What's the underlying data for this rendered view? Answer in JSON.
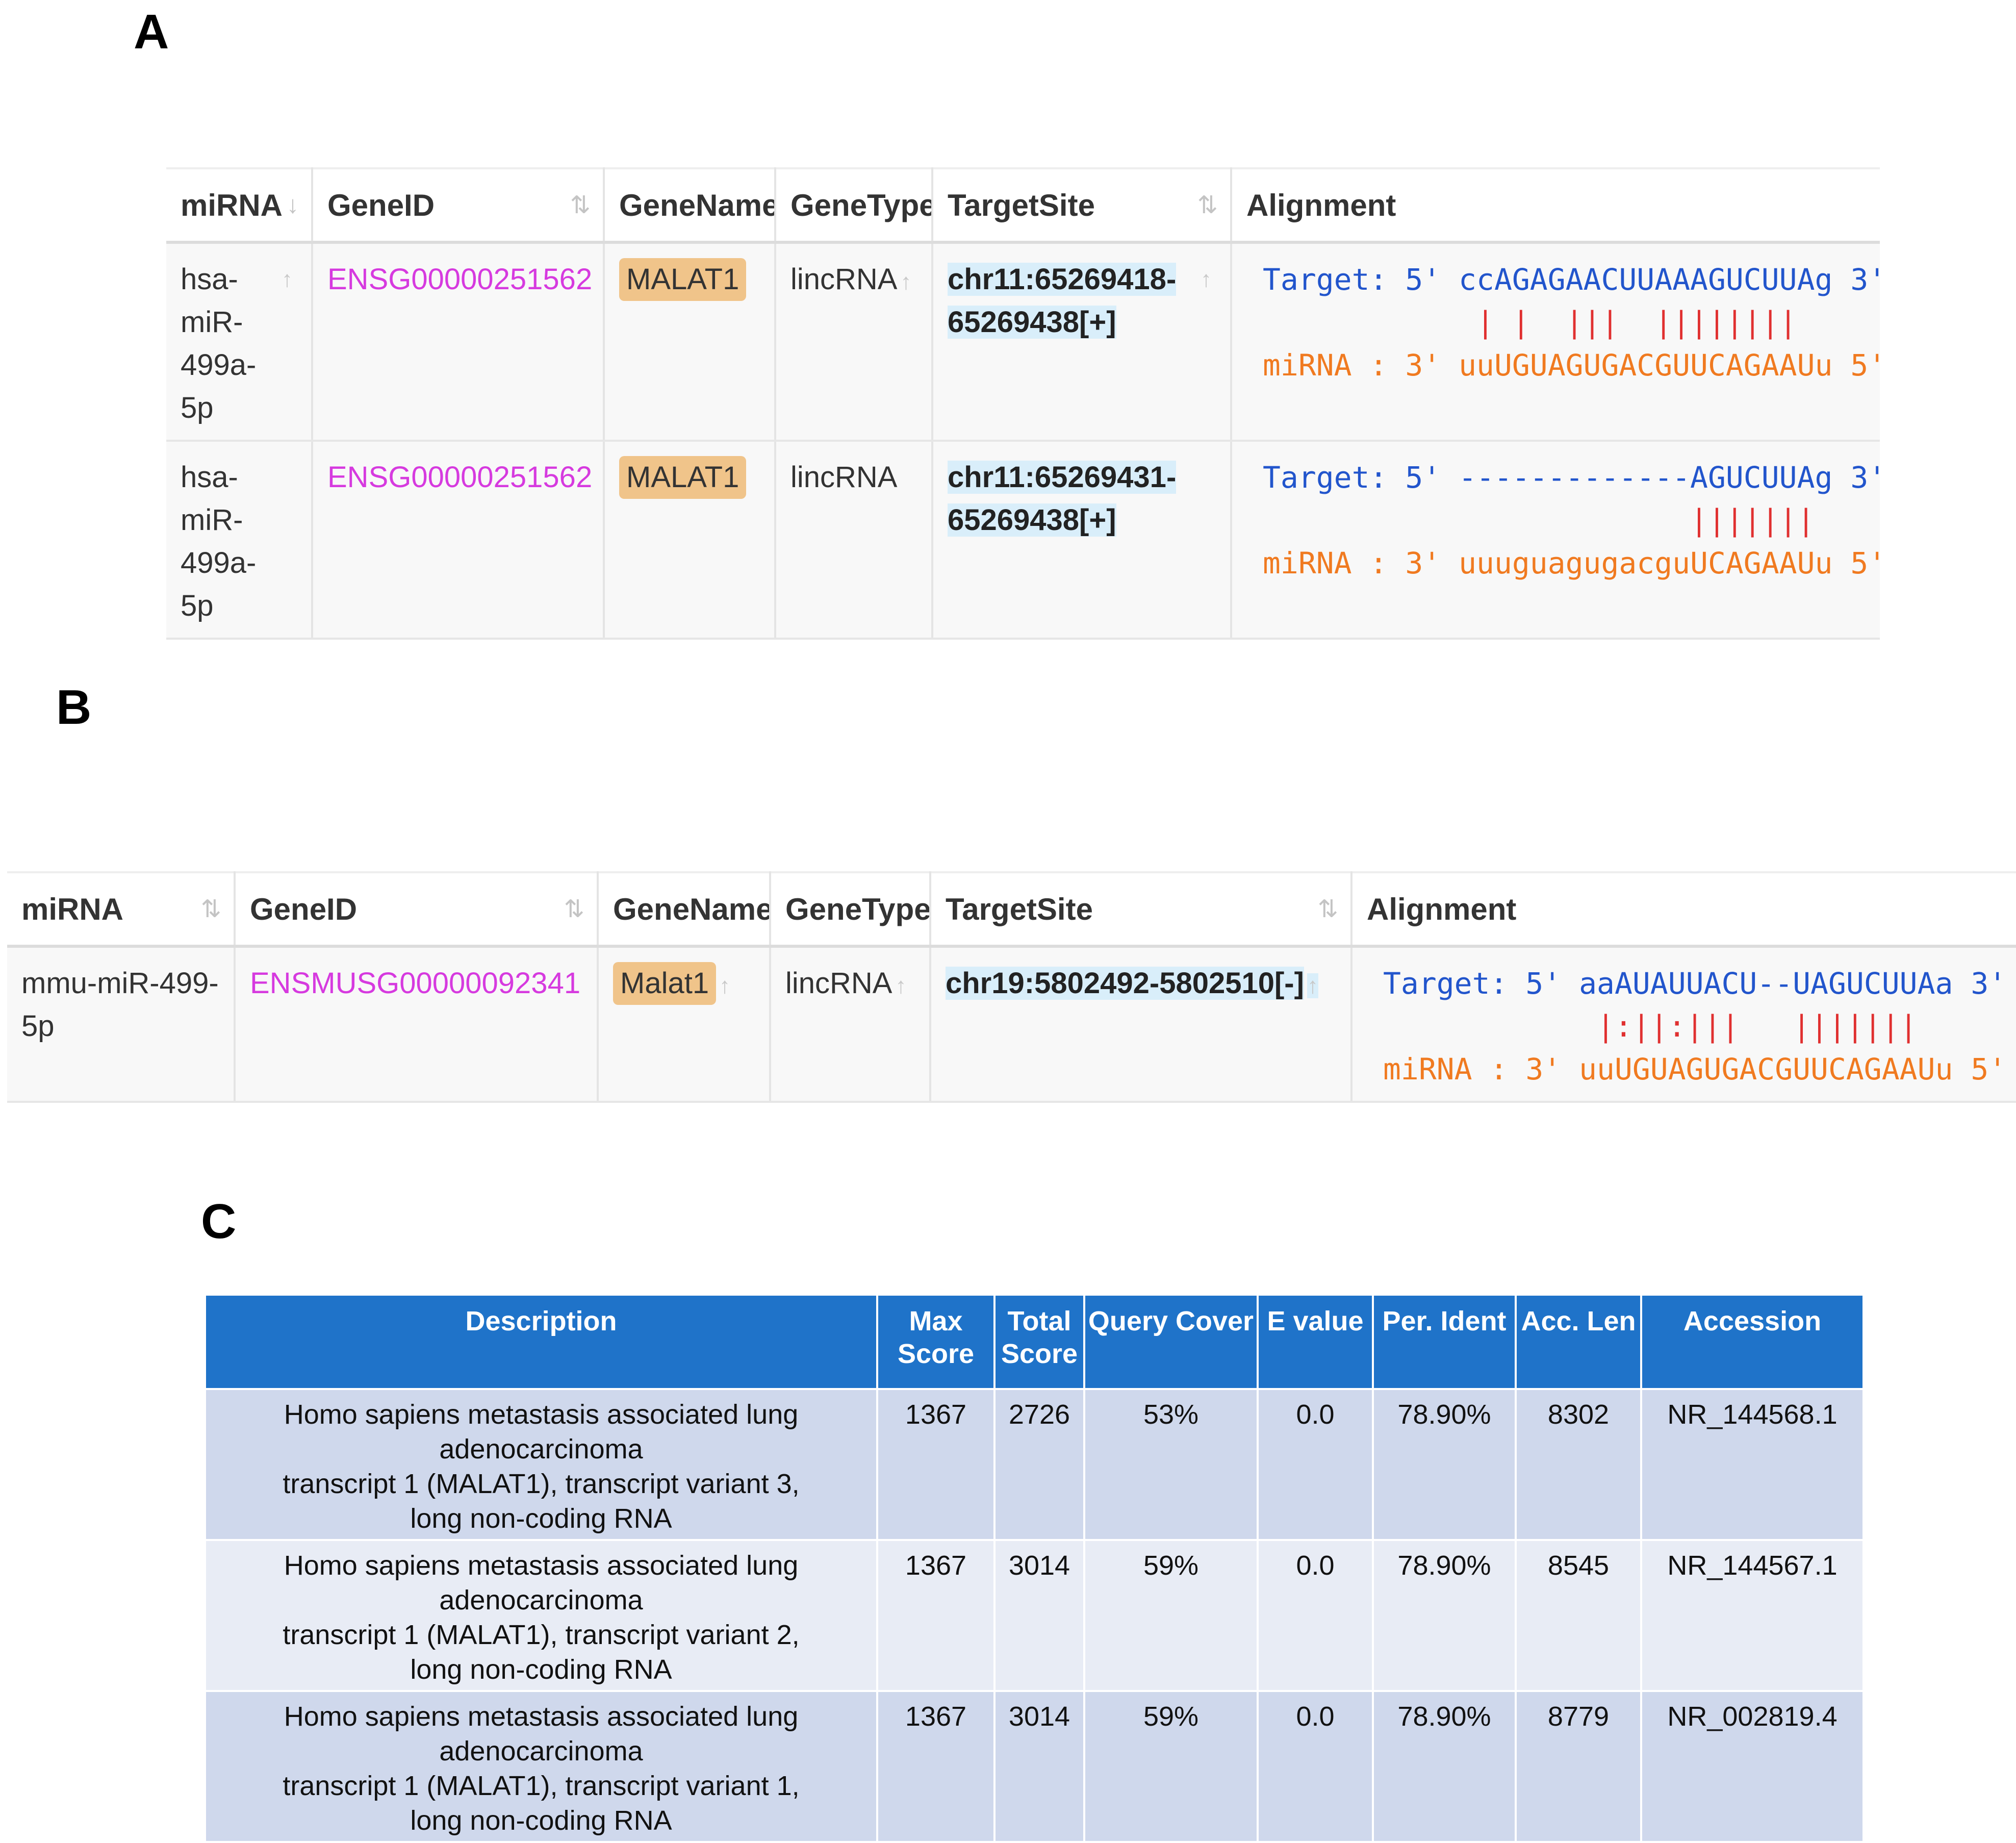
{
  "panels": {
    "a": "A",
    "b": "B",
    "c": "C"
  },
  "colors": {
    "gene_id": "#d63adf",
    "gene_name_badge": "#f0c48a",
    "target_site_highlight": "#d9eefa",
    "alignment_target": "#2255cc",
    "alignment_bonds": "#e03030",
    "alignment_mirna": "#f07a20",
    "blast_header": "#1f73c9",
    "blast_row_odd": "#cfd8ec",
    "blast_row_even": "#e8ecf5"
  },
  "mirna_columns": [
    "miRNA",
    "GeneID",
    "GeneName",
    "GeneType",
    "TargetSite",
    "Alignment"
  ],
  "table_a": {
    "rows": [
      {
        "mirna": "hsa-miR-499a-5p",
        "gene_id": "ENSG00000251562",
        "gene_name": "MALAT1",
        "gene_type": "lincRNA",
        "target_site": "chr11:65269418-65269438[+]",
        "alignment": {
          "target": "Target: 5' ccAGAGAACUUAAAGUCUUAg 3'",
          "bonds": "            | |  |||  ||||||||",
          "mirna": "miRNA : 3' uuUGUAGUGACGUUCAGAAUu 5'"
        }
      },
      {
        "mirna": "hsa-miR-499a-5p",
        "gene_id": "ENSG00000251562",
        "gene_name": "MALAT1",
        "gene_type": "lincRNA",
        "target_site": "chr11:65269431-65269438[+]",
        "alignment": {
          "target": "Target: 5' -------------AGUCUUAg 3'",
          "bonds": "                        |||||||",
          "mirna": "miRNA : 3' uuuguagugacguUCAGAAUu 5'"
        }
      }
    ]
  },
  "table_b": {
    "rows": [
      {
        "mirna": "mmu-miR-499-5p",
        "gene_id": "ENSMUSG00000092341",
        "gene_name": "Malat1",
        "gene_type": "lincRNA",
        "target_site": "chr19:5802492-5802510[-]",
        "alignment": {
          "target": "Target: 5' aaAUAUUACU--UAGUCUUAa 3'",
          "bonds": "            |:||:|||   |||||||",
          "mirna": "miRNA : 3' uuUGUAGUGACGUUCAGAAUu 5'"
        }
      }
    ]
  },
  "table_c": {
    "columns": [
      "Description",
      "Max Score",
      "Total Score",
      "Query Cover",
      "E value",
      "Per. Ident",
      "Acc. Len",
      "Accession"
    ],
    "rows": [
      {
        "description_lines": [
          "Homo sapiens metastasis associated lung adenocarcinoma",
          "transcript 1 (MALAT1), transcript variant 3,",
          "long non-coding RNA"
        ],
        "max_score": "1367",
        "total_score": "2726",
        "query_cover": "53%",
        "e_value": "0.0",
        "per_ident": "78.90%",
        "acc_len": "8302",
        "accession": "NR_144568.1"
      },
      {
        "description_lines": [
          "Homo sapiens metastasis associated lung adenocarcinoma",
          "transcript 1 (MALAT1), transcript variant 2,",
          "long non-coding RNA"
        ],
        "max_score": "1367",
        "total_score": "3014",
        "query_cover": "59%",
        "e_value": "0.0",
        "per_ident": "78.90%",
        "acc_len": "8545",
        "accession": "NR_144567.1"
      },
      {
        "description_lines": [
          "Homo sapiens metastasis associated lung adenocarcinoma",
          "transcript 1 (MALAT1), transcript variant 1,",
          "long non-coding RNA"
        ],
        "max_score": "1367",
        "total_score": "3014",
        "query_cover": "59%",
        "e_value": "0.0",
        "per_ident": "78.90%",
        "acc_len": "8779",
        "accession": "NR_002819.4"
      }
    ]
  }
}
